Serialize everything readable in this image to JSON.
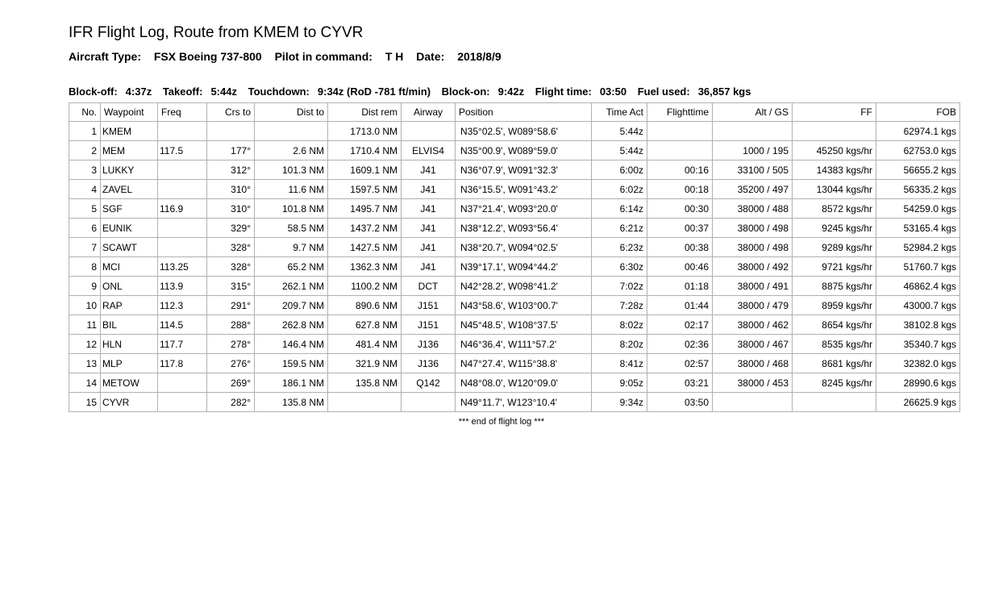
{
  "title": "IFR Flight Log, Route from KMEM to CYVR",
  "subtitle": {
    "aircraft_label": "Aircraft Type:",
    "aircraft": "FSX Boeing 737-800",
    "pic_label": "Pilot in command:",
    "pic": "T H",
    "date_label": "Date:",
    "date": "2018/8/9"
  },
  "block": {
    "blockoff_label": "Block-off:",
    "blockoff": "4:37z",
    "takeoff_label": "Takeoff:",
    "takeoff": "5:44z",
    "touchdown_label": "Touchdown:",
    "touchdown": "9:34z (RoD -781 ft/min)",
    "blockon_label": "Block-on:",
    "blockon": "9:42z",
    "flighttime_label": "Flight time:",
    "flighttime": "03:50",
    "fuelused_label": "Fuel used:",
    "fuelused": "36,857 kgs"
  },
  "columns": [
    "No.",
    "Waypoint",
    "Freq",
    "Crs to",
    "Dist to",
    "Dist rem",
    "Airway",
    "Position",
    "Time Act",
    "Flighttime",
    "Alt / GS",
    "FF",
    "FOB"
  ],
  "rows": [
    {
      "no": "1",
      "wp": "KMEM",
      "freq": "",
      "crs": "",
      "dist": "",
      "rem": "1713.0 NM",
      "aw": "",
      "pos": "N35°02.5', W089°58.6'",
      "time": "5:44z",
      "ft": "",
      "alt": "",
      "ff": "",
      "fob": "62974.1 kgs"
    },
    {
      "no": "2",
      "wp": "MEM",
      "freq": "117.5",
      "crs": "177°",
      "dist": "2.6 NM",
      "rem": "1710.4 NM",
      "aw": "ELVIS4",
      "pos": "N35°00.9', W089°59.0'",
      "time": "5:44z",
      "ft": "",
      "alt": "1000 / 195",
      "ff": "45250 kgs/hr",
      "fob": "62753.0 kgs"
    },
    {
      "no": "3",
      "wp": "LUKKY",
      "freq": "",
      "crs": "312°",
      "dist": "101.3 NM",
      "rem": "1609.1 NM",
      "aw": "J41",
      "pos": "N36°07.9', W091°32.3'",
      "time": "6:00z",
      "ft": "00:16",
      "alt": "33100 / 505",
      "ff": "14383 kgs/hr",
      "fob": "56655.2 kgs"
    },
    {
      "no": "4",
      "wp": "ZAVEL",
      "freq": "",
      "crs": "310°",
      "dist": "11.6 NM",
      "rem": "1597.5 NM",
      "aw": "J41",
      "pos": "N36°15.5', W091°43.2'",
      "time": "6:02z",
      "ft": "00:18",
      "alt": "35200 / 497",
      "ff": "13044 kgs/hr",
      "fob": "56335.2 kgs"
    },
    {
      "no": "5",
      "wp": "SGF",
      "freq": "116.9",
      "crs": "310°",
      "dist": "101.8 NM",
      "rem": "1495.7 NM",
      "aw": "J41",
      "pos": "N37°21.4', W093°20.0'",
      "time": "6:14z",
      "ft": "00:30",
      "alt": "38000 / 488",
      "ff": "8572 kgs/hr",
      "fob": "54259.0 kgs"
    },
    {
      "no": "6",
      "wp": "EUNIK",
      "freq": "",
      "crs": "329°",
      "dist": "58.5 NM",
      "rem": "1437.2 NM",
      "aw": "J41",
      "pos": "N38°12.2', W093°56.4'",
      "time": "6:21z",
      "ft": "00:37",
      "alt": "38000 / 498",
      "ff": "9245 kgs/hr",
      "fob": "53165.4 kgs"
    },
    {
      "no": "7",
      "wp": "SCAWT",
      "freq": "",
      "crs": "328°",
      "dist": "9.7 NM",
      "rem": "1427.5 NM",
      "aw": "J41",
      "pos": "N38°20.7', W094°02.5'",
      "time": "6:23z",
      "ft": "00:38",
      "alt": "38000 / 498",
      "ff": "9289 kgs/hr",
      "fob": "52984.2 kgs"
    },
    {
      "no": "8",
      "wp": "MCI",
      "freq": "113.25",
      "crs": "328°",
      "dist": "65.2 NM",
      "rem": "1362.3 NM",
      "aw": "J41",
      "pos": "N39°17.1', W094°44.2'",
      "time": "6:30z",
      "ft": "00:46",
      "alt": "38000 / 492",
      "ff": "9721 kgs/hr",
      "fob": "51760.7 kgs"
    },
    {
      "no": "9",
      "wp": "ONL",
      "freq": "113.9",
      "crs": "315°",
      "dist": "262.1 NM",
      "rem": "1100.2 NM",
      "aw": "DCT",
      "pos": "N42°28.2', W098°41.2'",
      "time": "7:02z",
      "ft": "01:18",
      "alt": "38000 / 491",
      "ff": "8875 kgs/hr",
      "fob": "46862.4 kgs"
    },
    {
      "no": "10",
      "wp": "RAP",
      "freq": "112.3",
      "crs": "291°",
      "dist": "209.7 NM",
      "rem": "890.6 NM",
      "aw": "J151",
      "pos": "N43°58.6', W103°00.7'",
      "time": "7:28z",
      "ft": "01:44",
      "alt": "38000 / 479",
      "ff": "8959 kgs/hr",
      "fob": "43000.7 kgs"
    },
    {
      "no": "11",
      "wp": "BIL",
      "freq": "114.5",
      "crs": "288°",
      "dist": "262.8 NM",
      "rem": "627.8 NM",
      "aw": "J151",
      "pos": "N45°48.5', W108°37.5'",
      "time": "8:02z",
      "ft": "02:17",
      "alt": "38000 / 462",
      "ff": "8654 kgs/hr",
      "fob": "38102.8 kgs"
    },
    {
      "no": "12",
      "wp": "HLN",
      "freq": "117.7",
      "crs": "278°",
      "dist": "146.4 NM",
      "rem": "481.4 NM",
      "aw": "J136",
      "pos": "N46°36.4', W111°57.2'",
      "time": "8:20z",
      "ft": "02:36",
      "alt": "38000 / 467",
      "ff": "8535 kgs/hr",
      "fob": "35340.7 kgs"
    },
    {
      "no": "13",
      "wp": "MLP",
      "freq": "117.8",
      "crs": "276°",
      "dist": "159.5 NM",
      "rem": "321.9 NM",
      "aw": "J136",
      "pos": "N47°27.4', W115°38.8'",
      "time": "8:41z",
      "ft": "02:57",
      "alt": "38000 / 468",
      "ff": "8681 kgs/hr",
      "fob": "32382.0 kgs"
    },
    {
      "no": "14",
      "wp": "METOW",
      "freq": "",
      "crs": "269°",
      "dist": "186.1 NM",
      "rem": "135.8 NM",
      "aw": "Q142",
      "pos": "N48°08.0', W120°09.0'",
      "time": "9:05z",
      "ft": "03:21",
      "alt": "38000 / 453",
      "ff": "8245 kgs/hr",
      "fob": "28990.6 kgs"
    },
    {
      "no": "15",
      "wp": "CYVR",
      "freq": "",
      "crs": "282°",
      "dist": "135.8 NM",
      "rem": "",
      "aw": "",
      "pos": "N49°11.7', W123°10.4'",
      "time": "9:34z",
      "ft": "03:50",
      "alt": "",
      "ff": "",
      "fob": "26625.9 kgs"
    }
  ],
  "footer": "*** end of flight log ***"
}
